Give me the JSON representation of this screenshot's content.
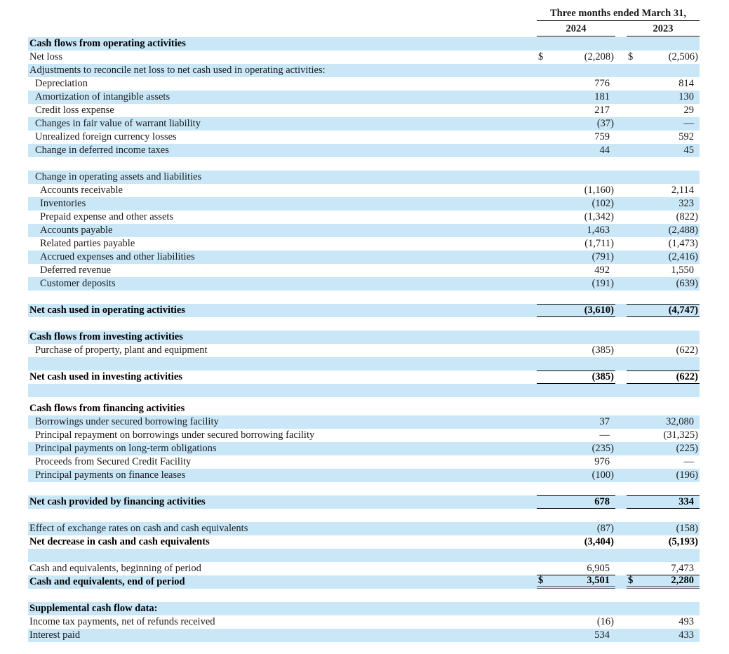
{
  "header": {
    "period_label": "Three months ended March 31,",
    "col_2024": "2024",
    "col_2023": "2023"
  },
  "currency_symbol": "$",
  "colors": {
    "row_highlight": "#cae7f8",
    "text": "#1a1a1a",
    "rule": "#000000",
    "double_rule": "#666666"
  },
  "rows": [
    {
      "label": "Cash flows from operating activities",
      "bold": true,
      "shaded": true,
      "indent": 0
    },
    {
      "label": "Net loss",
      "indent": 0,
      "v2024": "(2,208)",
      "v2023": "(2,506)",
      "dollar": true
    },
    {
      "label": "Adjustments to reconcile net loss to net cash used in operating activities:",
      "shaded": true,
      "indent": 0
    },
    {
      "label": "Depreciation",
      "indent": 1,
      "v2024": "776",
      "v2023": "814"
    },
    {
      "label": "Amortization of intangible assets",
      "indent": 1,
      "shaded": true,
      "v2024": "181",
      "v2023": "130"
    },
    {
      "label": "Credit loss expense",
      "indent": 1,
      "v2024": "217",
      "v2023": "29"
    },
    {
      "label": "Changes in fair value of warrant liability",
      "indent": 1,
      "shaded": true,
      "v2024": "(37)",
      "v2023": "—"
    },
    {
      "label": "Unrealized foreign currency losses",
      "indent": 1,
      "v2024": "759",
      "v2023": "592"
    },
    {
      "label": "Change in deferred income taxes",
      "indent": 1,
      "shaded": true,
      "v2024": "44",
      "v2023": "45"
    },
    {
      "label": ""
    },
    {
      "label": "Change in operating assets and liabilities",
      "indent": 1,
      "shaded": true
    },
    {
      "label": "Accounts receivable",
      "indent": 2,
      "v2024": "(1,160)",
      "v2023": "2,114"
    },
    {
      "label": "Inventories",
      "indent": 2,
      "shaded": true,
      "v2024": "(102)",
      "v2023": "323"
    },
    {
      "label": "Prepaid expense and other assets",
      "indent": 2,
      "v2024": "(1,342)",
      "v2023": "(822)"
    },
    {
      "label": "Accounts payable",
      "indent": 2,
      "shaded": true,
      "v2024": "1,463",
      "v2023": "(2,488)"
    },
    {
      "label": "Related parties payable",
      "indent": 2,
      "v2024": "(1,711)",
      "v2023": "(1,473)"
    },
    {
      "label": "Accrued expenses and other liabilities",
      "indent": 2,
      "shaded": true,
      "v2024": "(791)",
      "v2023": "(2,416)"
    },
    {
      "label": "Deferred revenue",
      "indent": 2,
      "v2024": "492",
      "v2023": "1,550"
    },
    {
      "label": "Customer deposits",
      "indent": 2,
      "shaded": true,
      "v2024": "(191)",
      "v2023": "(639)"
    },
    {
      "label": ""
    },
    {
      "label": "Net cash used in operating activities",
      "bold": true,
      "shaded": true,
      "v2024": "(3,610)",
      "v2023": "(4,747)",
      "rule": "both"
    },
    {
      "label": ""
    },
    {
      "label": "Cash flows from investing activities",
      "bold": true,
      "shaded": true
    },
    {
      "label": "Purchase of property, plant and equipment",
      "indent": 1,
      "v2024": "(385)",
      "v2023": "(622)"
    },
    {
      "label": "",
      "shaded": true
    },
    {
      "label": "Net cash used in investing activities",
      "bold": true,
      "v2024": "(385)",
      "v2023": "(622)",
      "rule": "both"
    },
    {
      "label": "",
      "shaded": true
    },
    {
      "label": "",
      "height": 7
    },
    {
      "label": "Cash flows from financing activities",
      "bold": true
    },
    {
      "label": "Borrowings under secured borrowing facility",
      "indent": 1,
      "shaded": true,
      "v2024": "37",
      "v2023": "32,080"
    },
    {
      "label": "Principal repayment on borrowings under secured borrowing facility",
      "indent": 1,
      "v2024": "—",
      "v2023": "(31,325)"
    },
    {
      "label": "Principal payments on long-term obligations",
      "indent": 1,
      "shaded": true,
      "v2024": "(235)",
      "v2023": "(225)"
    },
    {
      "label": "Proceeds from Secured Credit Facility",
      "indent": 1,
      "v2024": "976",
      "v2023": "—"
    },
    {
      "label": "Principal payments on finance leases",
      "indent": 1,
      "shaded": true,
      "v2024": "(100)",
      "v2023": "(196)"
    },
    {
      "label": ""
    },
    {
      "label": "Net cash provided by financing activities",
      "bold": true,
      "shaded": true,
      "v2024": "678",
      "v2023": "334",
      "rule": "both"
    },
    {
      "label": ""
    },
    {
      "label": "Effect of exchange rates on cash and cash equivalents",
      "shaded": true,
      "v2024": "(87)",
      "v2023": "(158)"
    },
    {
      "label": "Net decrease in cash and cash equivalents",
      "bold": true,
      "v2024": "(3,404)",
      "v2023": "(5,193)"
    },
    {
      "label": "",
      "shaded": true
    },
    {
      "label": "Cash and equivalents, beginning of period",
      "v2024": "6,905",
      "v2023": "7,473",
      "rule": "bottom"
    },
    {
      "label": "Cash and equivalents, end of period",
      "bold": true,
      "shaded": true,
      "v2024": "3,501",
      "v2023": "2,280",
      "dollar": true,
      "rule": "double"
    },
    {
      "label": ""
    },
    {
      "label": "Supplemental cash flow data:",
      "bold": true,
      "shaded": true
    },
    {
      "label": "Income tax payments, net of refunds received",
      "v2024": "(16)",
      "v2023": "493"
    },
    {
      "label": "Interest paid",
      "shaded": true,
      "v2024": "534",
      "v2023": "433"
    }
  ]
}
